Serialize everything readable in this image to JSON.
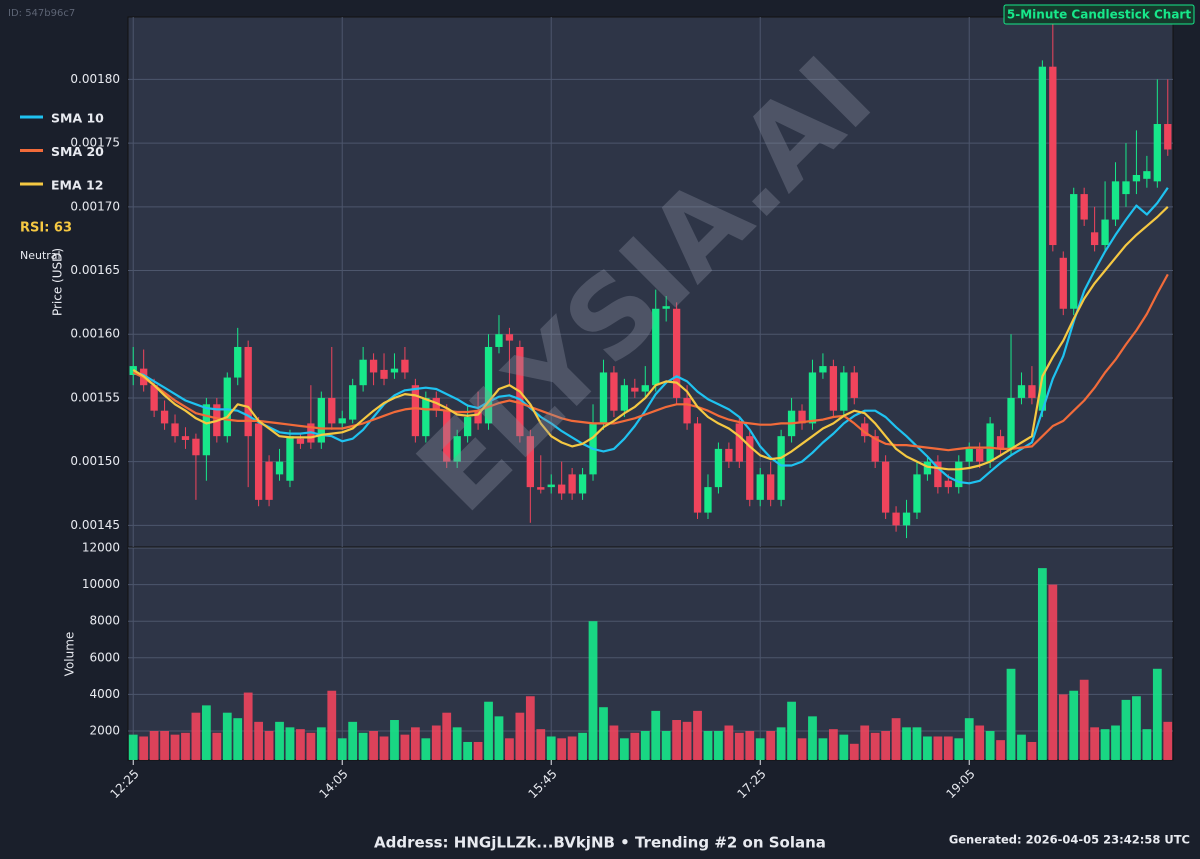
{
  "chart_data": {
    "type": "candlestick",
    "id_label": "ID: 547b96c7",
    "title": "5-Minute Candlestick Chart",
    "watermark": "ELYSIA.AI",
    "ylabel": "Price (USD)",
    "volume_label": "Volume",
    "rsi_label": "RSI: 63",
    "rsi_status": "Neutral",
    "footer": "Address: HNGjLLZk...BVkjNB • Trending #2 on Solana",
    "generated": "Generated: 2026-04-05 23:42:58 UTC",
    "up_color": "#17e88a",
    "down_color": "#f0445c",
    "grid": true,
    "categories": [
      "12:25",
      null,
      null,
      null,
      null,
      null,
      null,
      null,
      null,
      null,
      null,
      null,
      null,
      null,
      null,
      null,
      null,
      null,
      null,
      null,
      "14:05",
      null,
      null,
      null,
      null,
      null,
      null,
      null,
      null,
      null,
      null,
      null,
      null,
      null,
      null,
      null,
      null,
      null,
      null,
      null,
      "15:45",
      null,
      null,
      null,
      null,
      null,
      null,
      null,
      null,
      null,
      null,
      null,
      null,
      null,
      null,
      null,
      null,
      null,
      null,
      null,
      "17:25",
      null,
      null,
      null,
      null,
      null,
      null,
      null,
      null,
      null,
      null,
      null,
      null,
      null,
      null,
      null,
      null,
      null,
      null,
      null,
      "19:05",
      null,
      null,
      null,
      null,
      null,
      null,
      null,
      null,
      null,
      null,
      null,
      null,
      null,
      null,
      null,
      null,
      null,
      null,
      null
    ],
    "open": [
      0.001568,
      0.001573,
      0.00156,
      0.00154,
      0.00153,
      0.00152,
      0.001518,
      0.001505,
      0.001545,
      0.00152,
      0.001566,
      0.00159,
      0.00153,
      0.0015,
      0.00149,
      0.001485,
      0.001518,
      0.00153,
      0.001515,
      0.00155,
      0.00153,
      0.001533,
      0.00156,
      0.00158,
      0.001572,
      0.00157,
      0.00158,
      0.00156,
      0.00152,
      0.00155,
      0.00154,
      0.0015,
      0.00152,
      0.00154,
      0.00153,
      0.00159,
      0.0016,
      0.00159,
      0.00152,
      0.00148,
      0.00148,
      0.001482,
      0.00149,
      0.001475,
      0.00149,
      0.00153,
      0.00157,
      0.00154,
      0.001558,
      0.001555,
      0.00156,
      0.00162,
      0.00162,
      0.00155,
      0.00153,
      0.00146,
      0.00148,
      0.00151,
      0.00153,
      0.00152,
      0.00147,
      0.00149,
      0.00147,
      0.00152,
      0.00154,
      0.00153,
      0.00157,
      0.001575,
      0.00154,
      0.00157,
      0.00153,
      0.00152,
      0.0015,
      0.00146,
      0.00145,
      0.00146,
      0.00149,
      0.0015,
      0.001485,
      0.00148,
      0.0015,
      0.00151,
      0.0015,
      0.00152,
      0.00151,
      0.00155,
      0.00156,
      0.00154,
      0.00181,
      0.00166,
      0.00162,
      0.00171,
      0.00168,
      0.00167,
      0.00169,
      0.00171,
      0.00172,
      0.001722,
      0.00172,
      0.001765
    ],
    "high": [
      0.00159,
      0.001588,
      0.001565,
      0.001548,
      0.001537,
      0.001527,
      0.001522,
      0.00155,
      0.00155,
      0.00157,
      0.001605,
      0.001595,
      0.001535,
      0.001505,
      0.00151,
      0.001525,
      0.001522,
      0.00156,
      0.001555,
      0.00159,
      0.00154,
      0.001565,
      0.00159,
      0.001585,
      0.001585,
      0.001585,
      0.00159,
      0.001565,
      0.001555,
      0.001555,
      0.001545,
      0.001525,
      0.001545,
      0.001555,
      0.0016,
      0.001615,
      0.001605,
      0.001595,
      0.001525,
      0.001505,
      0.00149,
      0.0015,
      0.001495,
      0.001495,
      0.001545,
      0.00158,
      0.001575,
      0.001565,
      0.001565,
      0.001575,
      0.001635,
      0.00163,
      0.001625,
      0.00156,
      0.001535,
      0.00149,
      0.001515,
      0.001515,
      0.001535,
      0.001525,
      0.001495,
      0.0015,
      0.001525,
      0.00155,
      0.001545,
      0.00158,
      0.001585,
      0.00158,
      0.001575,
      0.001575,
      0.001535,
      0.001525,
      0.001505,
      0.001465,
      0.00147,
      0.0015,
      0.001505,
      0.001505,
      0.00149,
      0.001505,
      0.001515,
      0.001515,
      0.001535,
      0.001525,
      0.0016,
      0.00157,
      0.001575,
      0.001815,
      0.001845,
      0.001665,
      0.001715,
      0.001715,
      0.0017,
      0.00172,
      0.001735,
      0.00175,
      0.00176,
      0.00174,
      0.0018,
      0.0018
    ],
    "low": [
      0.00156,
      0.001555,
      0.001535,
      0.001525,
      0.001515,
      0.00151,
      0.00147,
      0.001485,
      0.001515,
      0.001515,
      0.00156,
      0.00148,
      0.001465,
      0.001465,
      0.001485,
      0.00148,
      0.00151,
      0.00151,
      0.00151,
      0.001525,
      0.001525,
      0.00153,
      0.001555,
      0.00156,
      0.00156,
      0.001565,
      0.001565,
      0.001515,
      0.001515,
      0.001535,
      0.001495,
      0.001495,
      0.001515,
      0.001525,
      0.001525,
      0.001585,
      0.00156,
      0.001515,
      0.001452,
      0.001475,
      0.001475,
      0.00147,
      0.00147,
      0.00147,
      0.001485,
      0.001525,
      0.001535,
      0.001535,
      0.00155,
      0.00155,
      0.001555,
      0.00161,
      0.001545,
      0.001525,
      0.001455,
      0.001455,
      0.001475,
      0.001495,
      0.001495,
      0.001465,
      0.001465,
      0.001465,
      0.001465,
      0.001515,
      0.001525,
      0.001525,
      0.001565,
      0.001535,
      0.001535,
      0.001545,
      0.001515,
      0.001495,
      0.001455,
      0.001445,
      0.00144,
      0.001455,
      0.001485,
      0.001475,
      0.001475,
      0.001475,
      0.001495,
      0.001495,
      0.001495,
      0.001505,
      0.001505,
      0.001545,
      0.001545,
      0.001535,
      0.001665,
      0.001615,
      0.001615,
      0.001685,
      0.001665,
      0.001665,
      0.001685,
      0.0017,
      0.00171,
      0.001715,
      0.001715,
      0.00174
    ],
    "close": [
      0.001575,
      0.00156,
      0.00154,
      0.00153,
      0.00152,
      0.001517,
      0.001505,
      0.001545,
      0.00152,
      0.001566,
      0.00159,
      0.00152,
      0.00147,
      0.00147,
      0.0015,
      0.00152,
      0.001514,
      0.001515,
      0.00155,
      0.00153,
      0.001534,
      0.00156,
      0.00158,
      0.00157,
      0.001565,
      0.001573,
      0.00157,
      0.00152,
      0.00155,
      0.00154,
      0.0015,
      0.00152,
      0.001535,
      0.00153,
      0.00159,
      0.0016,
      0.001595,
      0.00152,
      0.00148,
      0.001478,
      0.001482,
      0.001475,
      0.001475,
      0.00149,
      0.00153,
      0.00157,
      0.00154,
      0.00156,
      0.001555,
      0.00156,
      0.00162,
      0.001622,
      0.00155,
      0.00153,
      0.00146,
      0.00148,
      0.00151,
      0.0015,
      0.0015,
      0.00147,
      0.00149,
      0.00147,
      0.00152,
      0.00154,
      0.00153,
      0.00157,
      0.001575,
      0.00154,
      0.00157,
      0.00155,
      0.00152,
      0.0015,
      0.00146,
      0.00145,
      0.00146,
      0.00149,
      0.0015,
      0.00148,
      0.00148,
      0.0015,
      0.00151,
      0.0015,
      0.00153,
      0.00151,
      0.00155,
      0.00156,
      0.00155,
      0.00181,
      0.00167,
      0.00162,
      0.00171,
      0.00169,
      0.00167,
      0.00169,
      0.00172,
      0.00172,
      0.001725,
      0.001728,
      0.001765,
      0.001745
    ],
    "volume": [
      1800,
      1700,
      2000,
      2000,
      1800,
      1900,
      3000,
      3400,
      1900,
      3000,
      2700,
      4100,
      2500,
      2000,
      2500,
      2200,
      2100,
      1900,
      2200,
      4200,
      1600,
      2500,
      1900,
      2000,
      1700,
      2600,
      1800,
      2200,
      1600,
      2300,
      3000,
      2200,
      1400,
      1400,
      3600,
      2800,
      1600,
      3000,
      3900,
      2100,
      1700,
      1600,
      1700,
      1900,
      8000,
      3300,
      2300,
      1600,
      1900,
      2000,
      3100,
      2000,
      2600,
      2500,
      3100,
      2000,
      2000,
      2300,
      1900,
      2000,
      1600,
      2000,
      2200,
      3600,
      1600,
      2800,
      1600,
      2100,
      1800,
      1300,
      2300,
      1900,
      2000,
      2700,
      2200,
      2200,
      1700,
      1700,
      1700,
      1600,
      2700,
      2300,
      2000,
      1500,
      5400,
      1800,
      1400,
      10900,
      10000,
      4000,
      4200,
      4800,
      2200,
      2100,
      2300,
      3700,
      3900,
      2100,
      5400,
      2500
    ],
    "lines": [
      {
        "name": "SMA 10",
        "color": "#1fc2f0",
        "values": [
          0.00157,
          0.001568,
          0.001563,
          0.001558,
          0.001553,
          0.001548,
          0.001545,
          0.001542,
          0.001541,
          0.001541,
          0.00154,
          0.001536,
          0.001531,
          0.001527,
          0.001523,
          0.001522,
          0.001522,
          0.001523,
          0.001521,
          0.00152,
          0.001516,
          0.001518,
          0.001525,
          0.001535,
          0.001545,
          0.001552,
          0.001556,
          0.001557,
          0.001558,
          0.001557,
          0.001553,
          0.001549,
          0.001544,
          0.001542,
          0.001547,
          0.001551,
          0.001552,
          0.001549,
          0.001542,
          0.001535,
          0.00153,
          0.001524,
          0.001519,
          0.001514,
          0.00151,
          0.001508,
          0.00151,
          0.001518,
          0.001528,
          0.00154,
          0.001553,
          0.001562,
          0.001567,
          0.001563,
          0.001555,
          0.001549,
          0.001545,
          0.001541,
          0.001535,
          0.001525,
          0.001512,
          0.001503,
          0.001497,
          0.001497,
          0.0015,
          0.001507,
          0.001515,
          0.001522,
          0.00153,
          0.001536,
          0.00154,
          0.00154,
          0.001535,
          0.001527,
          0.00152,
          0.001512,
          0.001504,
          0.001495,
          0.001488,
          0.001484,
          0.001483,
          0.001485,
          0.001492,
          0.001499,
          0.001505,
          0.00151,
          0.001515,
          0.00154,
          0.001565,
          0.001583,
          0.00161,
          0.001634,
          0.00165,
          0.001665,
          0.001678,
          0.00169,
          0.001701,
          0.001694,
          0.001703,
          0.001715
        ]
      },
      {
        "name": "SMA 20",
        "color": "#f26b3a",
        "values": [
          0.00157,
          0.001566,
          0.00156,
          0.001554,
          0.001548,
          0.001543,
          0.001538,
          0.001536,
          0.001534,
          0.001533,
          0.001532,
          0.001532,
          0.001532,
          0.001531,
          0.00153,
          0.001529,
          0.001528,
          0.001527,
          0.001526,
          0.001526,
          0.001526,
          0.001528,
          0.00153,
          0.001533,
          0.001536,
          0.001539,
          0.001541,
          0.001542,
          0.001541,
          0.001541,
          0.00154,
          0.001539,
          0.001539,
          0.00154,
          0.001543,
          0.001546,
          0.001548,
          0.001546,
          0.001543,
          0.00154,
          0.001537,
          0.001534,
          0.001532,
          0.001531,
          0.00153,
          0.00153,
          0.00153,
          0.001532,
          0.001534,
          0.001537,
          0.00154,
          0.001543,
          0.001545,
          0.001545,
          0.001543,
          0.00154,
          0.001536,
          0.001533,
          0.001531,
          0.00153,
          0.001529,
          0.001529,
          0.00153,
          0.00153,
          0.001531,
          0.001532,
          0.001533,
          0.001535,
          0.001536,
          0.00153,
          0.001523,
          0.001518,
          0.001514,
          0.001513,
          0.001513,
          0.001512,
          0.001511,
          0.00151,
          0.001509,
          0.00151,
          0.001511,
          0.001511,
          0.001511,
          0.00151,
          0.00151,
          0.001511,
          0.001512,
          0.00152,
          0.001528,
          0.001532,
          0.00154,
          0.001548,
          0.001558,
          0.00157,
          0.00158,
          0.001592,
          0.001603,
          0.001616,
          0.001632,
          0.001647
        ]
      },
      {
        "name": "EMA 12",
        "color": "#f5c842",
        "values": [
          0.001572,
          0.001567,
          0.00156,
          0.001552,
          0.001545,
          0.00154,
          0.001534,
          0.00153,
          0.001532,
          0.001535,
          0.001545,
          0.001543,
          0.001532,
          0.001526,
          0.00152,
          0.001519,
          0.001519,
          0.001519,
          0.001521,
          0.001522,
          0.001523,
          0.001526,
          0.001533,
          0.00154,
          0.001546,
          0.00155,
          0.001553,
          0.001552,
          0.001549,
          0.001546,
          0.001542,
          0.001537,
          0.001536,
          0.001537,
          0.001547,
          0.001557,
          0.00156,
          0.001555,
          0.001545,
          0.00153,
          0.00152,
          0.001515,
          0.001512,
          0.001514,
          0.001519,
          0.001527,
          0.001532,
          0.001538,
          0.001543,
          0.00155,
          0.00156,
          0.001563,
          0.001562,
          0.001555,
          0.001543,
          0.001535,
          0.00153,
          0.001526,
          0.00152,
          0.001512,
          0.001505,
          0.001502,
          0.001503,
          0.001508,
          0.001514,
          0.00152,
          0.001526,
          0.00153,
          0.001536,
          0.00154,
          0.001538,
          0.00153,
          0.00152,
          0.00151,
          0.001504,
          0.0015,
          0.001496,
          0.001495,
          0.001494,
          0.001494,
          0.001495,
          0.001497,
          0.0015,
          0.001505,
          0.00151,
          0.001515,
          0.00152,
          0.001567,
          0.001582,
          0.001595,
          0.001612,
          0.001628,
          0.00164,
          0.00165,
          0.00166,
          0.00167,
          0.001678,
          0.001685,
          0.001692,
          0.0017
        ]
      }
    ],
    "ylim": [
      0.001433,
      0.001849
    ],
    "yticks": [
      {
        "value": 0.00145,
        "label": "0.00145"
      },
      {
        "value": 0.0015,
        "label": "0.00150"
      },
      {
        "value": 0.00155,
        "label": "0.00155"
      },
      {
        "value": 0.0016,
        "label": "0.00160"
      },
      {
        "value": 0.00165,
        "label": "0.00165"
      },
      {
        "value": 0.0017,
        "label": "0.00170"
      },
      {
        "value": 0.00175,
        "label": "0.00175"
      },
      {
        "value": 0.0018,
        "label": "0.00180"
      }
    ],
    "volume_ylim": [
      415,
      12000
    ],
    "volume_yticks": [
      2000,
      4000,
      6000,
      8000,
      10000,
      12000
    ]
  }
}
